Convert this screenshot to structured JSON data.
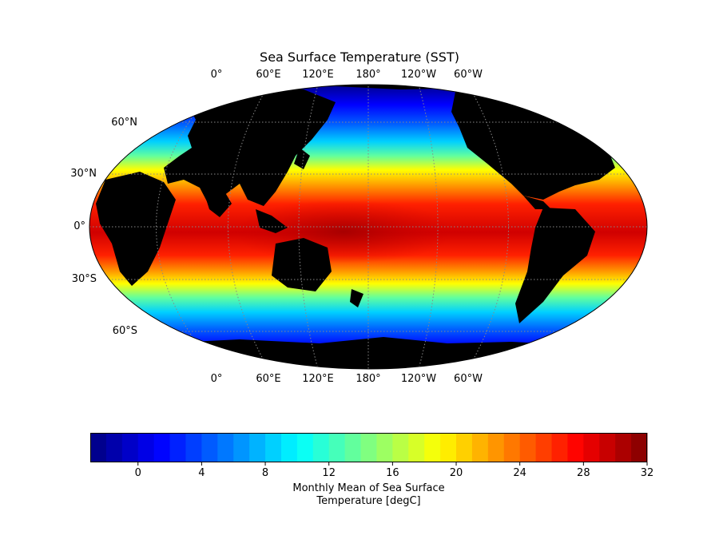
{
  "title": "Sea Surface Temperature (SST)",
  "projection": "Robinson",
  "central_longitude": "180°",
  "lon_labels": [
    "0°",
    "60°E",
    "120°E",
    "180°",
    "120°W",
    "60°W"
  ],
  "lat_labels": [
    "60°N",
    "30°N",
    "0°",
    "30°S",
    "60°S"
  ],
  "colorbar": {
    "label_line1": "Monthly Mean of Sea Surface",
    "label_line2": "Temperature [degC]",
    "colormap": "jet",
    "range": [
      -3,
      32
    ],
    "levels_step": 1,
    "ticks": [
      "0",
      "4",
      "8",
      "12",
      "16",
      "20",
      "24",
      "28",
      "32"
    ]
  },
  "colors": {
    "land": "#000000",
    "gridlines": "#888888",
    "background": "#ffffff"
  }
}
